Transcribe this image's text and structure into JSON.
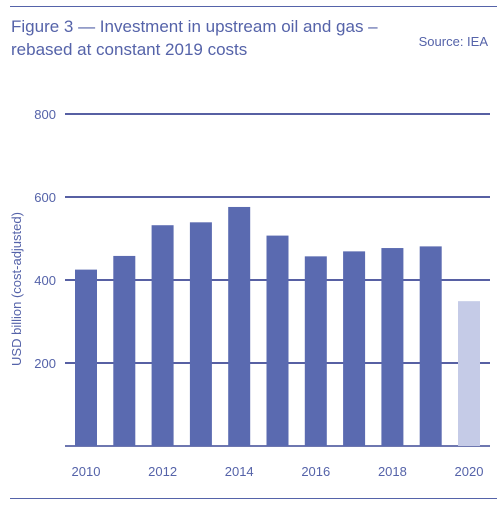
{
  "header": {
    "title": "Figure 3 — Investment in upstream oil and gas – rebased at constant 2019 costs",
    "source": "Source: IEA"
  },
  "colors": {
    "accent": "#5563a9",
    "bar": "#5a6ab0",
    "bar_estimate": "#c5cbe7",
    "gridline": "#3f4a96"
  },
  "chart_data": {
    "type": "bar",
    "title": "Figure 3 — Investment in upstream oil and gas – rebased at constant 2019 costs",
    "xlabel": "",
    "ylabel": "USD billion (cost-adjusted)",
    "ylim": [
      0,
      800
    ],
    "yticks": [
      200,
      400,
      600,
      800
    ],
    "categories": [
      "2010",
      "2011",
      "2012",
      "2013",
      "2014",
      "2015",
      "2016",
      "2017",
      "2018",
      "2019",
      "2020"
    ],
    "xtick_labels": [
      "2010",
      "2012",
      "2014",
      "2016",
      "2018",
      "2020"
    ],
    "values": [
      425,
      458,
      532,
      539,
      576,
      507,
      457,
      469,
      477,
      481,
      349
    ],
    "grid": true,
    "highlight_last": true
  }
}
